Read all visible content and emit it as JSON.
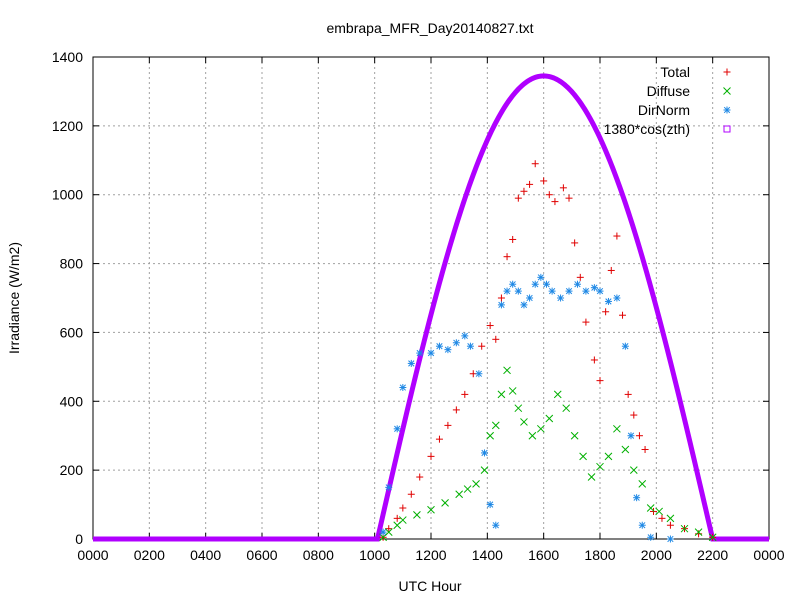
{
  "chart_data": {
    "type": "scatter",
    "title": "embrapa_MFR_Day20140827.txt",
    "xlabel": "UTC Hour",
    "ylabel": "Irradiance (W/m2)",
    "x_tick_labels": [
      "0000",
      "0200",
      "0400",
      "0600",
      "0800",
      "1000",
      "1200",
      "1400",
      "1600",
      "1800",
      "2000",
      "2200",
      "0000"
    ],
    "x_ticks": [
      0,
      2,
      4,
      6,
      8,
      10,
      12,
      14,
      16,
      18,
      20,
      22,
      24
    ],
    "xlim": [
      0,
      24
    ],
    "y_ticks": [
      0,
      200,
      400,
      600,
      800,
      1000,
      1200,
      1400
    ],
    "ylim": [
      0,
      1400
    ],
    "grid": true,
    "legend_position": "top-right",
    "series": [
      {
        "name": "Total",
        "color": "#e00000",
        "marker": "plus",
        "points": [
          [
            10.3,
            5
          ],
          [
            10.5,
            30
          ],
          [
            10.8,
            60
          ],
          [
            11.0,
            90
          ],
          [
            11.3,
            130
          ],
          [
            11.6,
            180
          ],
          [
            12.0,
            240
          ],
          [
            12.3,
            290
          ],
          [
            12.6,
            330
          ],
          [
            12.9,
            375
          ],
          [
            13.2,
            420
          ],
          [
            13.5,
            480
          ],
          [
            13.8,
            560
          ],
          [
            14.1,
            620
          ],
          [
            14.3,
            580
          ],
          [
            14.5,
            700
          ],
          [
            14.7,
            820
          ],
          [
            14.9,
            870
          ],
          [
            15.1,
            990
          ],
          [
            15.3,
            1010
          ],
          [
            15.5,
            1030
          ],
          [
            15.7,
            1090
          ],
          [
            16.0,
            1040
          ],
          [
            16.2,
            1000
          ],
          [
            16.4,
            980
          ],
          [
            16.7,
            1020
          ],
          [
            16.9,
            990
          ],
          [
            17.1,
            860
          ],
          [
            17.3,
            760
          ],
          [
            17.5,
            630
          ],
          [
            17.8,
            520
          ],
          [
            18.0,
            460
          ],
          [
            18.2,
            660
          ],
          [
            18.4,
            780
          ],
          [
            18.6,
            880
          ],
          [
            18.8,
            650
          ],
          [
            19.0,
            420
          ],
          [
            19.2,
            360
          ],
          [
            19.4,
            300
          ],
          [
            19.6,
            260
          ],
          [
            19.9,
            80
          ],
          [
            20.2,
            60
          ],
          [
            20.5,
            40
          ],
          [
            21.0,
            30
          ],
          [
            21.5,
            15
          ],
          [
            22.0,
            5
          ]
        ]
      },
      {
        "name": "Diffuse",
        "color": "#00b000",
        "marker": "cross",
        "points": [
          [
            10.3,
            5
          ],
          [
            10.5,
            20
          ],
          [
            10.8,
            40
          ],
          [
            11.0,
            55
          ],
          [
            11.5,
            70
          ],
          [
            12.0,
            85
          ],
          [
            12.5,
            105
          ],
          [
            13.0,
            130
          ],
          [
            13.3,
            145
          ],
          [
            13.6,
            160
          ],
          [
            13.9,
            200
          ],
          [
            14.1,
            300
          ],
          [
            14.3,
            330
          ],
          [
            14.5,
            420
          ],
          [
            14.7,
            490
          ],
          [
            14.9,
            430
          ],
          [
            15.1,
            380
          ],
          [
            15.3,
            340
          ],
          [
            15.6,
            300
          ],
          [
            15.9,
            320
          ],
          [
            16.2,
            350
          ],
          [
            16.5,
            420
          ],
          [
            16.8,
            380
          ],
          [
            17.1,
            300
          ],
          [
            17.4,
            240
          ],
          [
            17.7,
            180
          ],
          [
            18.0,
            210
          ],
          [
            18.3,
            240
          ],
          [
            18.6,
            320
          ],
          [
            18.9,
            260
          ],
          [
            19.2,
            200
          ],
          [
            19.5,
            160
          ],
          [
            19.8,
            90
          ],
          [
            20.1,
            80
          ],
          [
            20.5,
            60
          ],
          [
            21.0,
            30
          ],
          [
            21.5,
            20
          ],
          [
            22.0,
            5
          ]
        ]
      },
      {
        "name": "DirNorm",
        "color": "#1e88e5",
        "marker": "star",
        "points": [
          [
            10.3,
            20
          ],
          [
            10.5,
            150
          ],
          [
            10.8,
            320
          ],
          [
            11.0,
            440
          ],
          [
            11.3,
            510
          ],
          [
            11.6,
            540
          ],
          [
            12.0,
            540
          ],
          [
            12.3,
            560
          ],
          [
            12.6,
            550
          ],
          [
            12.9,
            570
          ],
          [
            13.2,
            590
          ],
          [
            13.4,
            560
          ],
          [
            13.7,
            480
          ],
          [
            13.9,
            250
          ],
          [
            14.1,
            100
          ],
          [
            14.3,
            40
          ],
          [
            14.5,
            680
          ],
          [
            14.7,
            720
          ],
          [
            14.9,
            740
          ],
          [
            15.1,
            720
          ],
          [
            15.3,
            680
          ],
          [
            15.5,
            700
          ],
          [
            15.7,
            740
          ],
          [
            15.9,
            760
          ],
          [
            16.1,
            740
          ],
          [
            16.3,
            720
          ],
          [
            16.6,
            700
          ],
          [
            16.9,
            720
          ],
          [
            17.2,
            740
          ],
          [
            17.5,
            720
          ],
          [
            17.8,
            730
          ],
          [
            18.0,
            720
          ],
          [
            18.3,
            690
          ],
          [
            18.6,
            700
          ],
          [
            18.9,
            560
          ],
          [
            19.1,
            300
          ],
          [
            19.3,
            120
          ],
          [
            19.5,
            40
          ],
          [
            19.8,
            5
          ],
          [
            20.5,
            0
          ]
        ]
      },
      {
        "name": "1380*cos(zth)",
        "color": "#b000ff",
        "marker": "square",
        "curve": {
          "rise_hour": 10.1,
          "peak_hour": 16.0,
          "set_hour": 22.0,
          "peak_value": 1345
        }
      }
    ]
  }
}
